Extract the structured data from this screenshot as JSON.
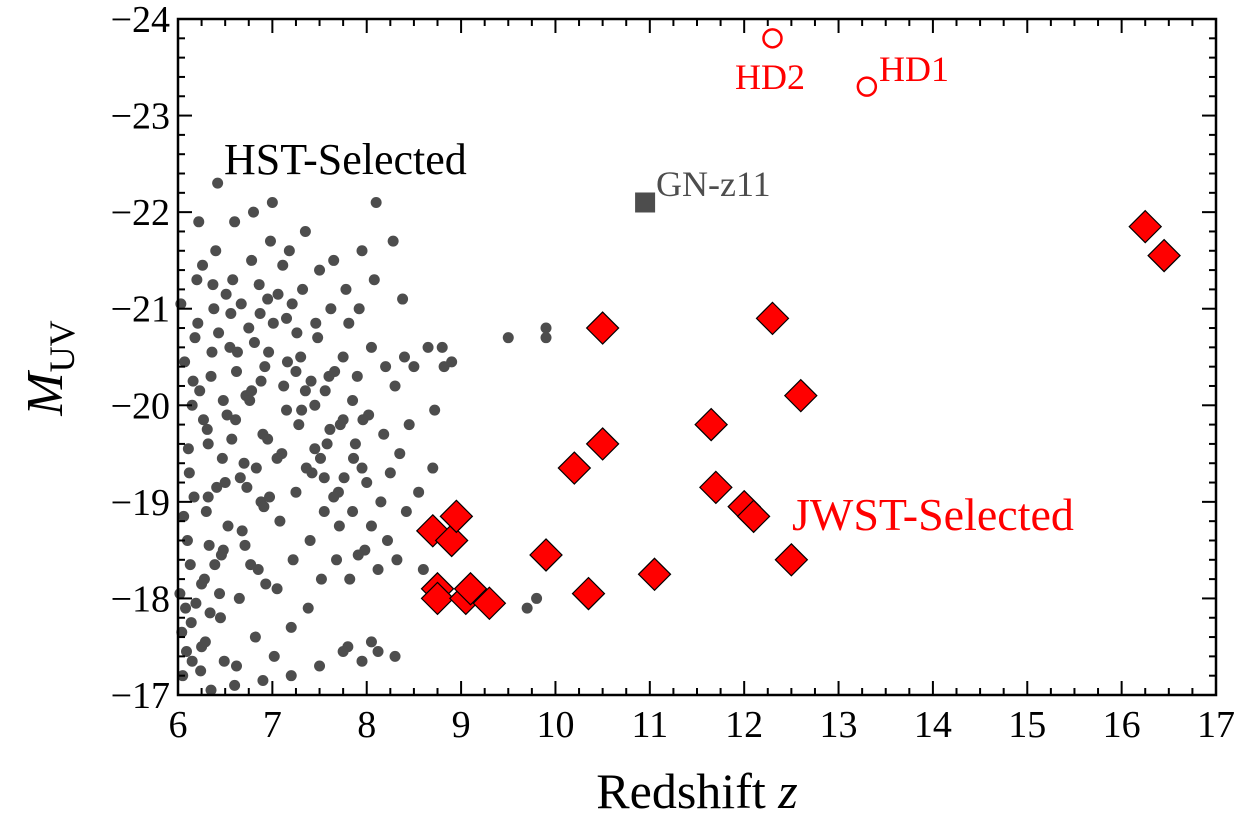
{
  "chart_data": {
    "type": "scatter",
    "xlabel": "Redshift ",
    "xlabel_var": "z",
    "ylabel_main": "M",
    "ylabel_sub": "UV",
    "xlim": [
      6,
      17
    ],
    "ylim": [
      -17,
      -24
    ],
    "y_inverted": true,
    "xticks": [
      6,
      7,
      8,
      9,
      10,
      11,
      12,
      13,
      14,
      15,
      16,
      17
    ],
    "xtick_labels": [
      "6",
      "7",
      "8",
      "9",
      "10",
      "11",
      "12",
      "13",
      "14",
      "15",
      "16",
      "17"
    ],
    "yticks": [
      -17,
      -18,
      -19,
      -20,
      -21,
      -22,
      -23,
      -24
    ],
    "ytick_labels": [
      "−17",
      "−18",
      "−19",
      "−20",
      "−21",
      "−22",
      "−23",
      "−24"
    ],
    "colors": {
      "hst": "#4d4d4d",
      "jwst": "#ff0000",
      "gnz11": "#4d4d4d",
      "hd": "#ff0000",
      "axis": "#000000"
    },
    "annotations": {
      "hst_label": "HST-Selected",
      "jwst_label": "JWST-Selected",
      "gnz11_label": "GN-z11",
      "hd1_label": "HD1",
      "hd2_label": "HD2"
    },
    "series": [
      {
        "name": "JWST-Selected",
        "marker": "diamond",
        "points": [
          [
            8.7,
            -18.7
          ],
          [
            8.9,
            -18.6
          ],
          [
            8.95,
            -18.85
          ],
          [
            8.75,
            -18.1
          ],
          [
            8.75,
            -18.0
          ],
          [
            9.05,
            -18.0
          ],
          [
            9.1,
            -18.1
          ],
          [
            9.3,
            -17.95
          ],
          [
            9.9,
            -18.45
          ],
          [
            10.2,
            -19.35
          ],
          [
            10.35,
            -18.05
          ],
          [
            10.5,
            -19.6
          ],
          [
            10.5,
            -20.8
          ],
          [
            11.05,
            -18.25
          ],
          [
            11.65,
            -19.8
          ],
          [
            11.7,
            -19.15
          ],
          [
            12.0,
            -18.95
          ],
          [
            12.1,
            -18.85
          ],
          [
            12.3,
            -20.9
          ],
          [
            12.5,
            -18.4
          ],
          [
            12.6,
            -20.1
          ],
          [
            16.25,
            -21.85
          ],
          [
            16.45,
            -21.55
          ]
        ]
      },
      {
        "name": "GN-z11",
        "marker": "square",
        "points": [
          [
            10.95,
            -22.1
          ]
        ]
      },
      {
        "name": "HD",
        "marker": "open-circle",
        "points": [
          [
            12.3,
            -23.8
          ],
          [
            13.3,
            -23.3
          ]
        ]
      },
      {
        "name": "HST-Selected",
        "marker": "dot",
        "points": [
          [
            6.05,
            -17.2
          ],
          [
            6.08,
            -17.9
          ],
          [
            6.1,
            -18.6
          ],
          [
            6.12,
            -19.3
          ],
          [
            6.15,
            -20.0
          ],
          [
            6.18,
            -20.7
          ],
          [
            6.2,
            -21.3
          ],
          [
            6.22,
            -21.9
          ],
          [
            6.25,
            -17.5
          ],
          [
            6.28,
            -18.2
          ],
          [
            6.3,
            -18.9
          ],
          [
            6.32,
            -19.6
          ],
          [
            6.35,
            -20.3
          ],
          [
            6.38,
            -21.0
          ],
          [
            6.4,
            -21.6
          ],
          [
            6.42,
            -22.3
          ],
          [
            6.45,
            -17.8
          ],
          [
            6.48,
            -18.5
          ],
          [
            6.5,
            -19.2
          ],
          [
            6.52,
            -19.9
          ],
          [
            6.55,
            -20.6
          ],
          [
            6.58,
            -21.3
          ],
          [
            6.6,
            -21.9
          ],
          [
            6.62,
            -17.3
          ],
          [
            6.65,
            -18.0
          ],
          [
            6.68,
            -18.7
          ],
          [
            6.7,
            -19.4
          ],
          [
            6.72,
            -20.1
          ],
          [
            6.75,
            -20.8
          ],
          [
            6.78,
            -21.5
          ],
          [
            6.8,
            -22.0
          ],
          [
            6.82,
            -17.6
          ],
          [
            6.85,
            -18.3
          ],
          [
            6.88,
            -19.0
          ],
          [
            6.9,
            -19.7
          ],
          [
            6.92,
            -20.4
          ],
          [
            6.95,
            -21.1
          ],
          [
            6.98,
            -21.7
          ],
          [
            7.0,
            -22.1
          ],
          [
            7.02,
            -17.4
          ],
          [
            7.05,
            -18.1
          ],
          [
            7.08,
            -18.8
          ],
          [
            7.1,
            -19.5
          ],
          [
            7.12,
            -20.2
          ],
          [
            7.15,
            -20.9
          ],
          [
            7.18,
            -21.6
          ],
          [
            7.2,
            -17.7
          ],
          [
            7.22,
            -18.4
          ],
          [
            7.25,
            -19.1
          ],
          [
            7.28,
            -19.8
          ],
          [
            7.3,
            -20.5
          ],
          [
            7.32,
            -21.2
          ],
          [
            7.35,
            -21.8
          ],
          [
            7.38,
            -17.9
          ],
          [
            7.4,
            -18.6
          ],
          [
            7.42,
            -19.3
          ],
          [
            7.45,
            -20.0
          ],
          [
            7.48,
            -20.7
          ],
          [
            7.5,
            -21.4
          ],
          [
            7.52,
            -18.2
          ],
          [
            7.55,
            -18.9
          ],
          [
            7.58,
            -19.6
          ],
          [
            7.6,
            -20.3
          ],
          [
            7.62,
            -21.0
          ],
          [
            7.65,
            -21.5
          ],
          [
            7.68,
            -18.4
          ],
          [
            7.7,
            -19.1
          ],
          [
            7.72,
            -19.8
          ],
          [
            7.75,
            -20.5
          ],
          [
            7.78,
            -21.2
          ],
          [
            7.8,
            -17.5
          ],
          [
            7.82,
            -18.2
          ],
          [
            7.85,
            -18.9
          ],
          [
            7.88,
            -19.6
          ],
          [
            7.9,
            -20.3
          ],
          [
            7.92,
            -21.0
          ],
          [
            7.95,
            -21.6
          ],
          [
            7.98,
            -18.5
          ],
          [
            8.0,
            -19.2
          ],
          [
            8.02,
            -19.9
          ],
          [
            8.05,
            -20.6
          ],
          [
            8.08,
            -21.3
          ],
          [
            8.1,
            -22.1
          ],
          [
            8.12,
            -18.3
          ],
          [
            8.15,
            -19.0
          ],
          [
            8.18,
            -19.7
          ],
          [
            8.2,
            -20.4
          ],
          [
            8.22,
            -18.6
          ],
          [
            8.25,
            -19.3
          ],
          [
            8.28,
            -21.7
          ],
          [
            8.3,
            -20.2
          ],
          [
            8.32,
            -18.4
          ],
          [
            8.35,
            -19.5
          ],
          [
            8.38,
            -21.1
          ],
          [
            8.4,
            -20.5
          ],
          [
            8.42,
            -18.9
          ],
          [
            8.45,
            -19.8
          ],
          [
            8.5,
            -20.4
          ],
          [
            8.55,
            -19.1
          ],
          [
            8.6,
            -18.3
          ],
          [
            8.65,
            -20.6
          ],
          [
            8.7,
            -19.35
          ],
          [
            8.72,
            -19.95
          ],
          [
            8.8,
            -20.6
          ],
          [
            8.82,
            -20.4
          ],
          [
            8.9,
            -20.45
          ],
          [
            9.5,
            -20.7
          ],
          [
            9.9,
            -20.7
          ],
          [
            9.9,
            -20.8
          ],
          [
            9.7,
            -17.9
          ],
          [
            9.8,
            -18.0
          ],
          [
            8.3,
            -17.4
          ],
          [
            8.12,
            -17.45
          ],
          [
            8.05,
            -17.55
          ],
          [
            7.95,
            -17.35
          ],
          [
            7.75,
            -17.45
          ],
          [
            7.5,
            -17.3
          ],
          [
            7.2,
            -17.2
          ],
          [
            6.9,
            -17.15
          ],
          [
            6.6,
            -17.1
          ],
          [
            6.35,
            -17.05
          ],
          [
            6.15,
            -17.35
          ],
          [
            6.25,
            -18.15
          ],
          [
            6.32,
            -19.05
          ],
          [
            6.48,
            -20.05
          ],
          [
            6.62,
            -20.35
          ],
          [
            6.78,
            -20.15
          ],
          [
            6.88,
            -20.25
          ],
          [
            6.95,
            -19.65
          ],
          [
            7.05,
            -19.45
          ],
          [
            7.15,
            -19.95
          ],
          [
            7.25,
            -20.35
          ],
          [
            7.35,
            -20.15
          ],
          [
            7.45,
            -19.55
          ],
          [
            7.55,
            -19.25
          ],
          [
            7.65,
            -19.05
          ],
          [
            7.75,
            -19.85
          ],
          [
            7.85,
            -20.05
          ],
          [
            7.95,
            -19.35
          ],
          [
            8.05,
            -18.75
          ],
          [
            6.02,
            -18.05
          ],
          [
            6.06,
            -18.85
          ],
          [
            6.11,
            -19.55
          ],
          [
            6.16,
            -20.25
          ],
          [
            6.21,
            -20.85
          ],
          [
            6.26,
            -21.45
          ],
          [
            6.31,
            -19.75
          ],
          [
            6.36,
            -20.55
          ],
          [
            6.41,
            -19.15
          ],
          [
            6.46,
            -18.45
          ],
          [
            6.51,
            -21.15
          ],
          [
            6.56,
            -20.95
          ],
          [
            6.61,
            -19.85
          ],
          [
            6.66,
            -19.25
          ],
          [
            6.71,
            -18.55
          ],
          [
            6.76,
            -20.05
          ],
          [
            6.81,
            -20.65
          ],
          [
            6.86,
            -21.25
          ],
          [
            6.91,
            -18.95
          ],
          [
            6.96,
            -20.55
          ],
          [
            7.01,
            -20.85
          ],
          [
            7.06,
            -21.15
          ],
          [
            7.11,
            -21.45
          ],
          [
            7.16,
            -20.45
          ],
          [
            7.21,
            -21.05
          ],
          [
            7.26,
            -20.75
          ],
          [
            7.31,
            -19.95
          ],
          [
            7.36,
            -19.35
          ],
          [
            7.41,
            -20.25
          ],
          [
            7.46,
            -20.85
          ],
          [
            7.51,
            -19.45
          ],
          [
            7.56,
            -20.15
          ],
          [
            7.61,
            -19.75
          ],
          [
            7.66,
            -20.35
          ],
          [
            7.71,
            -18.75
          ],
          [
            7.76,
            -19.25
          ],
          [
            7.81,
            -20.85
          ],
          [
            7.86,
            -19.45
          ],
          [
            7.91,
            -18.45
          ],
          [
            7.96,
            -19.85
          ],
          [
            6.03,
            -21.05
          ],
          [
            6.07,
            -20.45
          ],
          [
            6.13,
            -18.35
          ],
          [
            6.17,
            -19.05
          ],
          [
            6.23,
            -20.15
          ],
          [
            6.27,
            -19.85
          ],
          [
            6.33,
            -18.55
          ],
          [
            6.37,
            -21.25
          ],
          [
            6.43,
            -20.75
          ],
          [
            6.47,
            -19.45
          ],
          [
            6.53,
            -18.75
          ],
          [
            6.57,
            -19.65
          ],
          [
            6.63,
            -20.55
          ],
          [
            6.67,
            -21.05
          ],
          [
            6.73,
            -19.15
          ],
          [
            6.77,
            -18.35
          ],
          [
            6.83,
            -19.35
          ],
          [
            6.87,
            -20.95
          ],
          [
            6.93,
            -18.15
          ],
          [
            6.97,
            -19.05
          ],
          [
            6.04,
            -17.65
          ],
          [
            6.09,
            -17.45
          ],
          [
            6.14,
            -17.75
          ],
          [
            6.19,
            -17.95
          ],
          [
            6.24,
            -17.25
          ],
          [
            6.29,
            -17.55
          ],
          [
            6.34,
            -17.85
          ],
          [
            6.39,
            -18.35
          ],
          [
            6.44,
            -18.05
          ],
          [
            6.49,
            -17.35
          ]
        ]
      }
    ]
  }
}
